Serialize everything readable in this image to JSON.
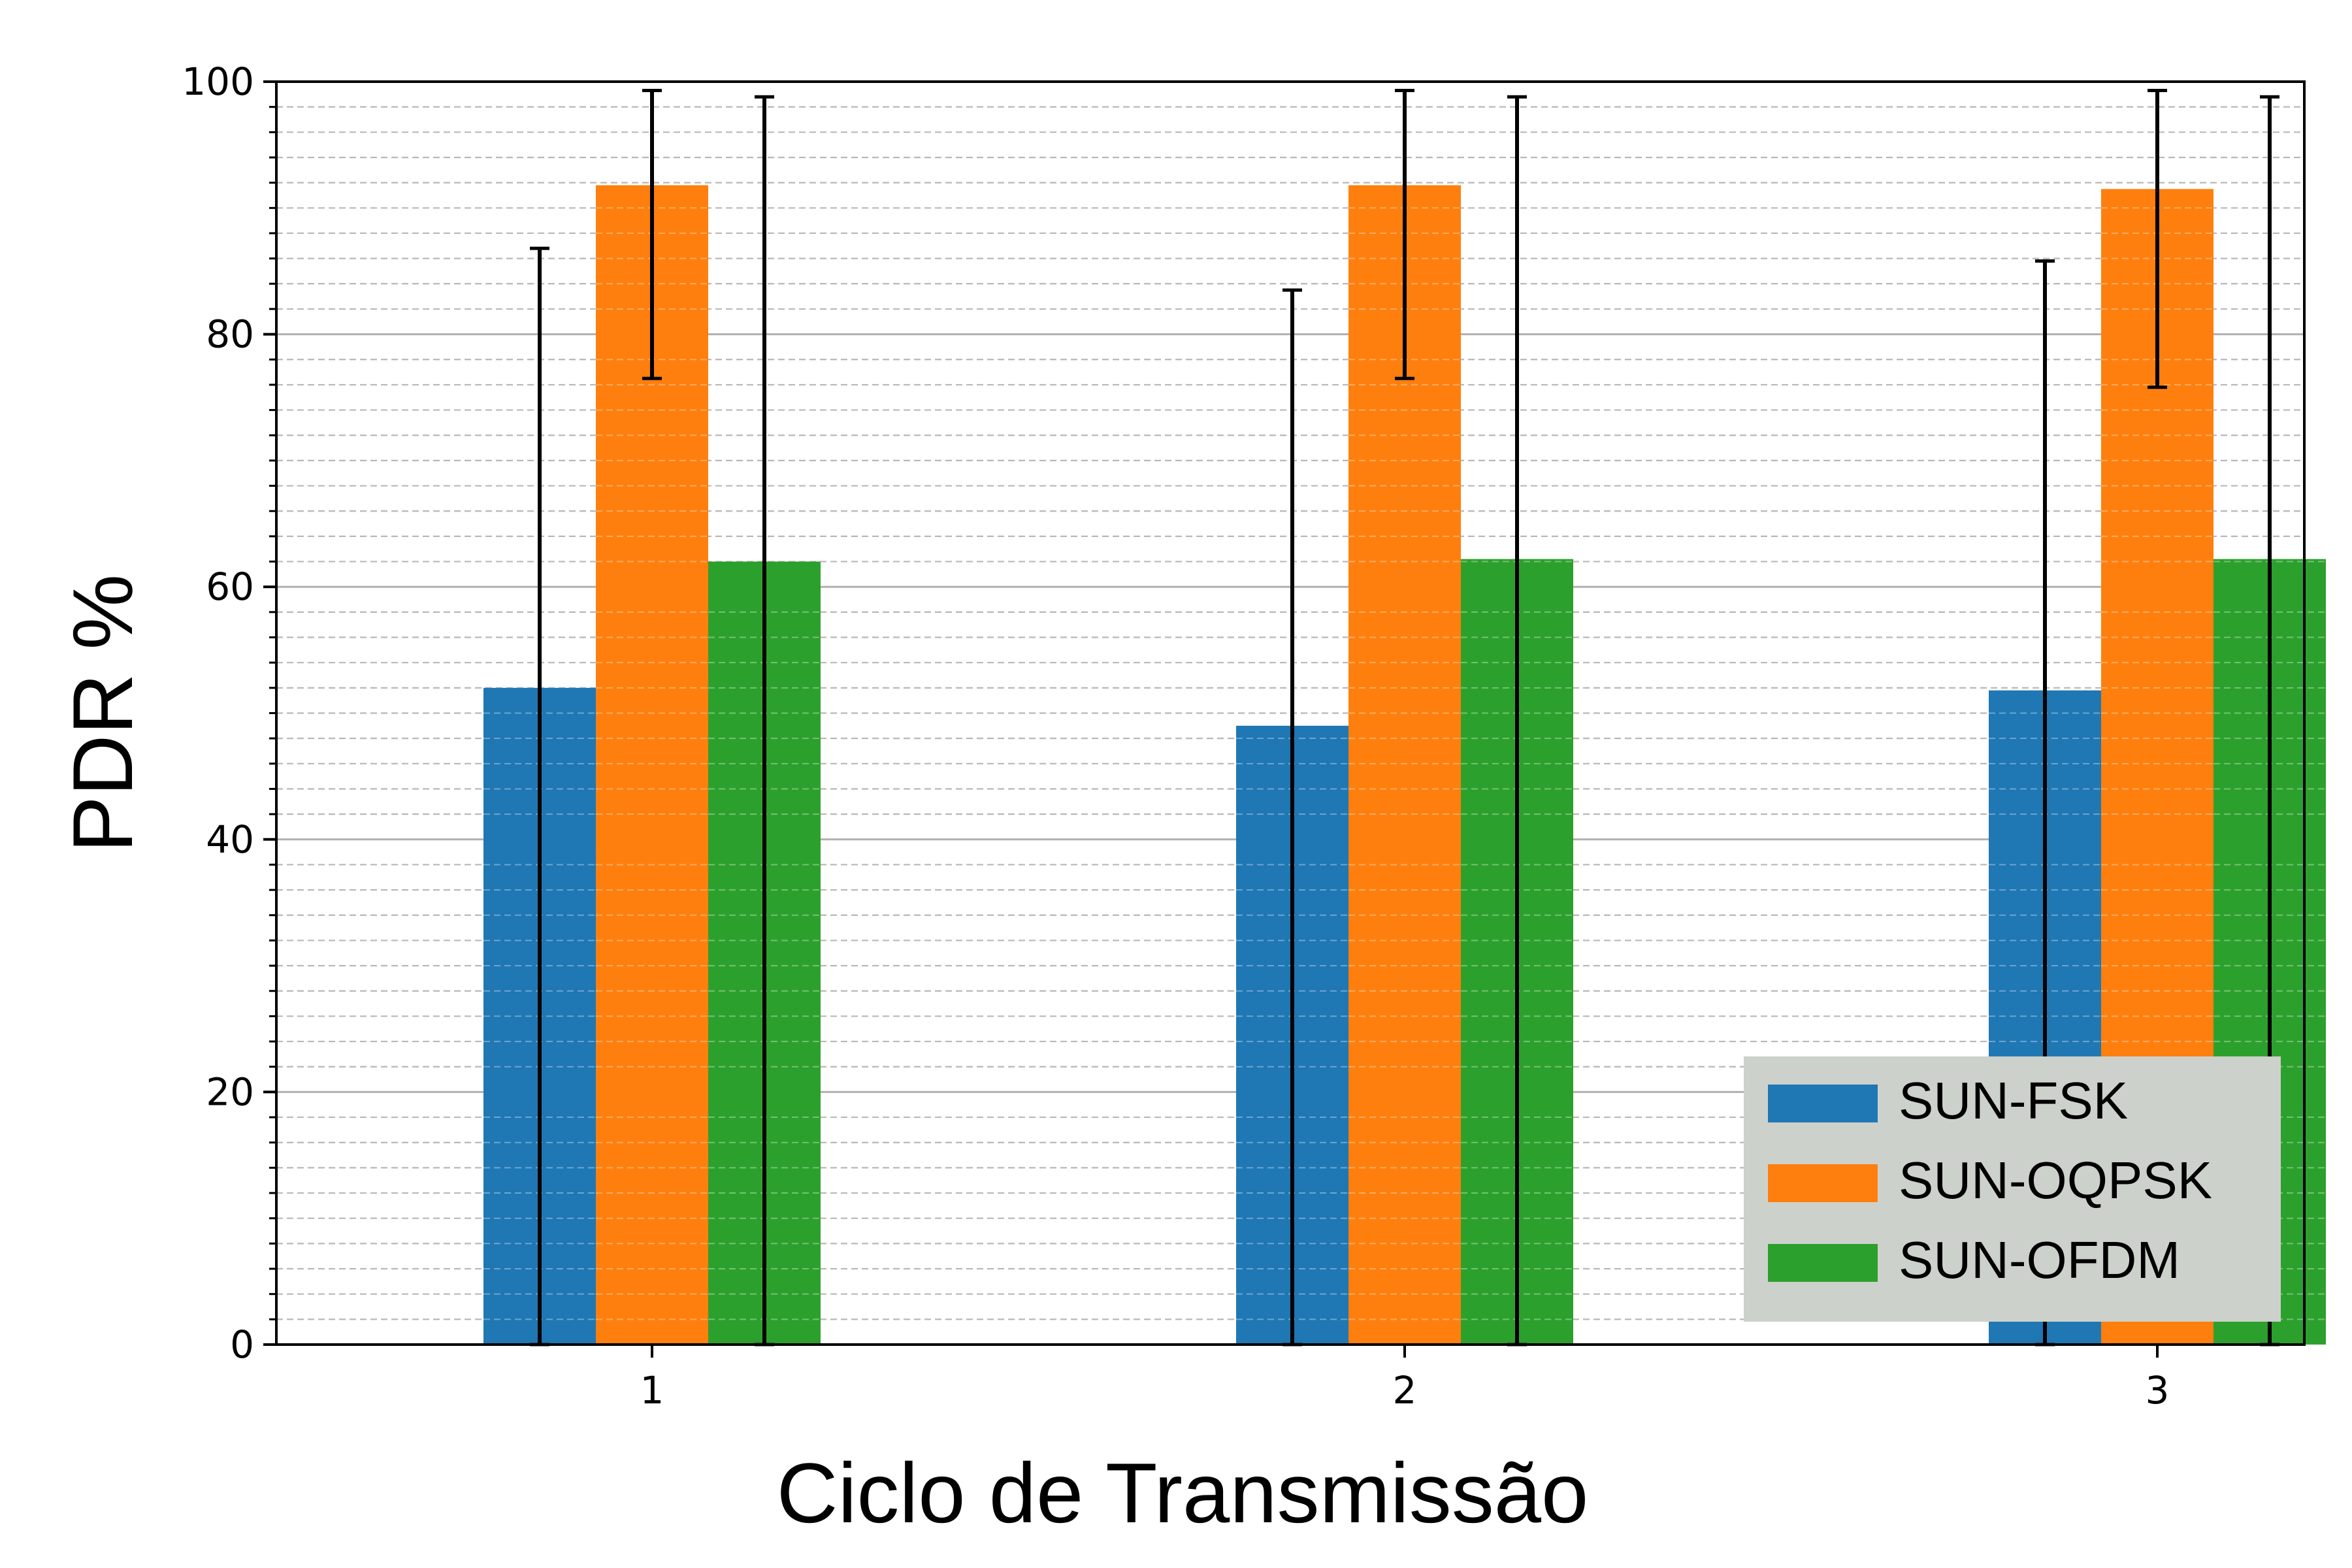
{
  "chart_data": {
    "type": "bar",
    "title": "",
    "xlabel": "Ciclo de Transmissão",
    "ylabel": "PDR %",
    "categories": [
      "1",
      "2",
      "3"
    ],
    "ylim": [
      0,
      100
    ],
    "yticks": [
      "0",
      "20",
      "40",
      "60",
      "80",
      "100"
    ],
    "grid": "major and minor, dashed",
    "legend_position": "lower-right",
    "series": [
      {
        "name": "SUN-FSK",
        "color": "#1f77b4",
        "values": [
          52.0,
          49.0,
          51.8
        ],
        "error_low": [
          0,
          0,
          0
        ],
        "error_high": [
          86.8,
          83.5,
          85.8
        ]
      },
      {
        "name": "SUN-OQPSK",
        "color": "#ff7f0e",
        "values": [
          91.8,
          91.8,
          91.5
        ],
        "error_low": [
          76.5,
          76.5,
          75.8
        ],
        "error_high": [
          99.3,
          99.3,
          99.3
        ]
      },
      {
        "name": "SUN-OFDM",
        "color": "#2ca02c",
        "values": [
          62.0,
          62.2,
          62.2
        ],
        "error_low": [
          0,
          0,
          0
        ],
        "error_high": [
          98.8,
          98.8,
          98.8
        ]
      }
    ]
  }
}
